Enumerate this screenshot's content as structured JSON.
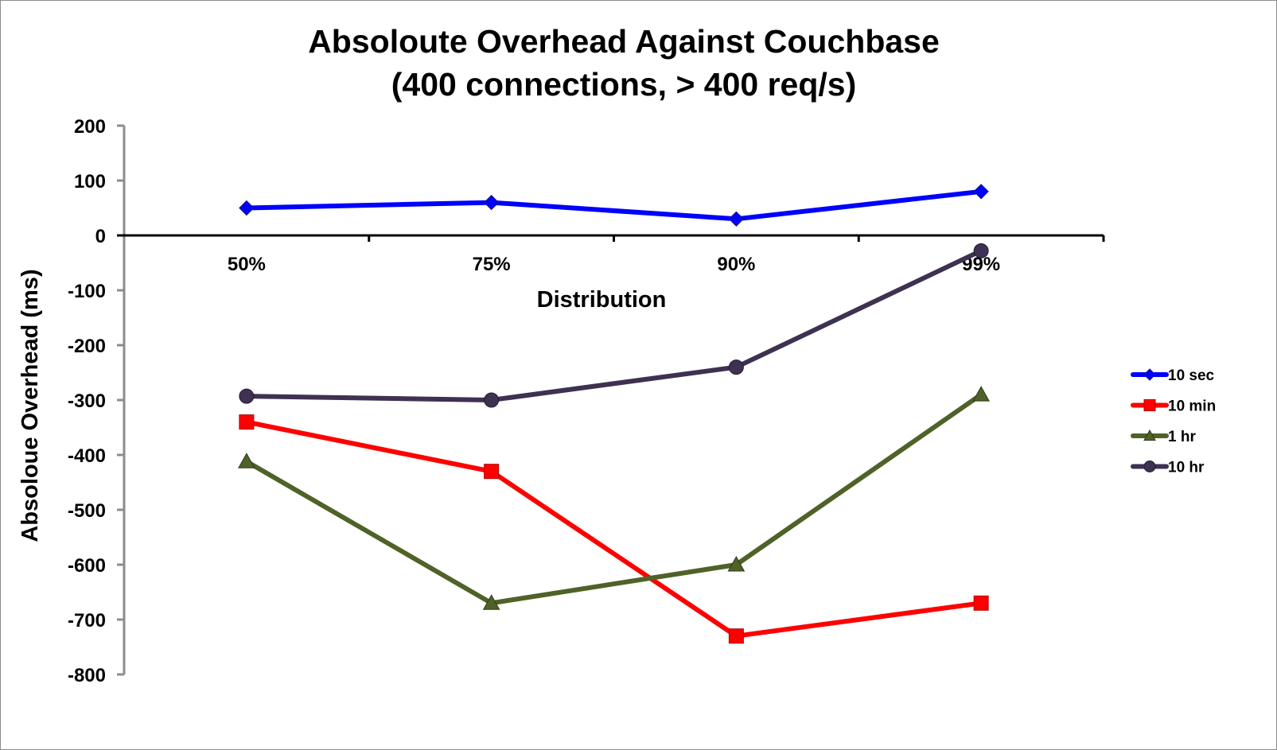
{
  "chart_data": {
    "type": "line",
    "title_line1": "Absoloute Overhead Against Couchbase",
    "title_line2": "(400 connections, > 400 req/s)",
    "xlabel": "Distribution",
    "ylabel": "Absoloue Overhead (ms)",
    "categories": [
      "50%",
      "75%",
      "90%",
      "99%"
    ],
    "ylim": [
      -800,
      200
    ],
    "yticks": [
      200,
      100,
      0,
      -100,
      -200,
      -300,
      -400,
      -500,
      -600,
      -700,
      -800
    ],
    "legend_position": "right",
    "grid": false,
    "series": [
      {
        "name": "10 sec",
        "values": [
          50,
          60,
          30,
          80
        ],
        "color": "#0000ff",
        "marker": "diamond"
      },
      {
        "name": "10 min",
        "values": [
          -340,
          -430,
          -730,
          -670
        ],
        "color": "#ff0000",
        "marker": "square"
      },
      {
        "name": "1 hr",
        "values": [
          -412,
          -670,
          -600,
          -290
        ],
        "color": "#4f6228",
        "marker": "triangle"
      },
      {
        "name": "10 hr",
        "values": [
          -293,
          -300,
          -240,
          -28
        ],
        "color": "#3f3151",
        "marker": "circle"
      }
    ]
  }
}
